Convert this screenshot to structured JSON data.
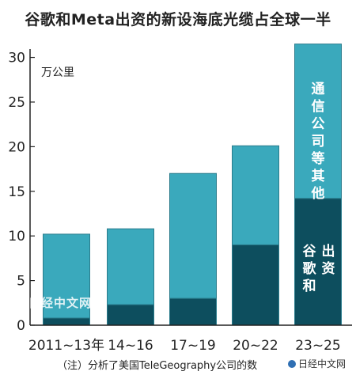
{
  "title": "谷歌和Meta出资的新设海底光缆占全球一半",
  "footnote": "（注）分析了美国TeleGeography公司的数",
  "watermark": "日经中文网",
  "colors": {
    "top_segment": "#3aa9bc",
    "bottom_segment": "#0d4e5e",
    "bar_edge": "#2a7c8c",
    "axis": "#222222"
  },
  "chart_data": {
    "type": "bar",
    "stacked": true,
    "title": "谷歌和Meta出资的新设海底光缆占全球一半",
    "unit": "万公里",
    "categories": [
      "2011~13年",
      "14~16",
      "17~19",
      "20~22",
      "23~25"
    ],
    "series": [
      {
        "name": "谷歌和出资",
        "values": [
          0.8,
          2.3,
          3.0,
          9.0,
          14.2
        ]
      },
      {
        "name": "通信公司等其他",
        "values": [
          9.4,
          8.5,
          14.0,
          11.1,
          17.3
        ]
      }
    ],
    "yticks": [
      0,
      5,
      10,
      15,
      20,
      25,
      30
    ],
    "ylim": [
      0,
      32
    ],
    "grid": false
  }
}
